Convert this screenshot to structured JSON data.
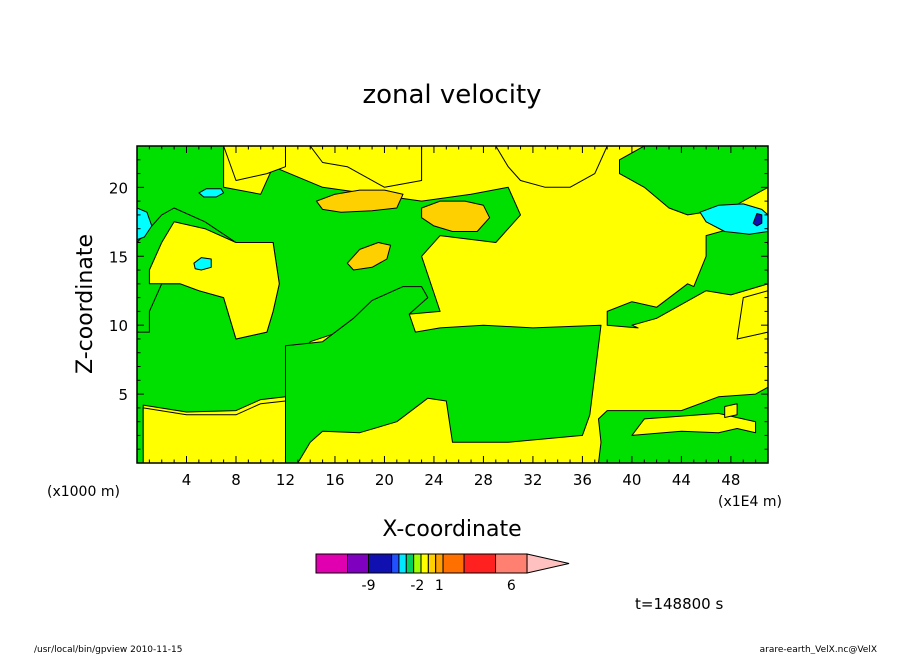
{
  "chart_data": {
    "type": "heatmap",
    "title": "zonal velocity",
    "xlabel": "X-coordinate",
    "ylabel": "Z-coordinate",
    "x_unit_left": "(x1000 m)",
    "x_unit_right": "(x1E4 m)",
    "xlim": [
      0,
      51
    ],
    "ylim": [
      0,
      23
    ],
    "xticks": [
      4,
      8,
      12,
      16,
      20,
      24,
      28,
      32,
      36,
      40,
      44,
      48
    ],
    "yticks": [
      5,
      10,
      15,
      20
    ],
    "time_label": "t=148800 s",
    "colorbar": {
      "labels": [
        {
          "text": "-9",
          "bin": 2
        },
        {
          "text": "-2",
          "bin": 6.5
        },
        {
          "text": "1",
          "bin": 9.5
        },
        {
          "text": "6",
          "bin": 12.5
        }
      ],
      "colors": [
        "#e000b0",
        "#8000c0",
        "#1010b0",
        "#2050ff",
        "#00e8ff",
        "#00d060",
        "#a0ff00",
        "#ffff00",
        "#ffd000",
        "#ffa000",
        "#ff7000",
        "#ff2020",
        "#ff8070"
      ],
      "bin_widths": [
        1.5,
        1,
        1.1,
        0.35,
        0.35,
        0.35,
        0.35,
        0.35,
        0.35,
        0.35,
        1,
        1.5,
        1.5
      ]
    },
    "regions": [
      {
        "level": "green",
        "color": "#00e000",
        "polygons": [
          [
            [
              0,
              0
            ],
            [
              0,
              23
            ],
            [
              7,
              23
            ],
            [
              7,
              20
            ],
            [
              10,
              19.5
            ],
            [
              11,
              21.5
            ],
            [
              15,
              20
            ],
            [
              19,
              19.5
            ],
            [
              23,
              19
            ],
            [
              27,
              19.5
            ],
            [
              30,
              20
            ],
            [
              31,
              18
            ],
            [
              29,
              16
            ],
            [
              24.5,
              16.5
            ],
            [
              23,
              15
            ],
            [
              24.5,
              11
            ],
            [
              22,
              10.8
            ],
            [
              18,
              10
            ],
            [
              14,
              8.8
            ],
            [
              12,
              4.8
            ],
            [
              10,
              4.6
            ],
            [
              8,
              3.8
            ],
            [
              4,
              3.7
            ],
            [
              0.5,
              4.2
            ],
            [
              0.5,
              1
            ],
            [
              1,
              0
            ]
          ],
          [
            [
              12,
              0
            ],
            [
              12,
              8.5
            ],
            [
              15,
              8.8
            ],
            [
              17.5,
              10.5
            ],
            [
              19,
              11.8
            ],
            [
              21.5,
              12.8
            ],
            [
              23,
              12.8
            ],
            [
              23.5,
              12
            ],
            [
              22,
              10.8
            ],
            [
              22.5,
              9.5
            ],
            [
              24.5,
              9.8
            ],
            [
              28,
              10
            ],
            [
              32,
              9.8
            ],
            [
              37.5,
              10
            ],
            [
              36.6,
              3.5
            ],
            [
              36,
              2
            ],
            [
              30,
              1.5
            ],
            [
              25.5,
              1.5
            ],
            [
              25,
              4.5
            ],
            [
              23.5,
              4.7
            ],
            [
              21,
              3
            ],
            [
              18,
              2.2
            ],
            [
              15,
              2.3
            ],
            [
              14,
              1.5
            ],
            [
              13,
              0
            ]
          ],
          [
            [
              0,
              9.5
            ],
            [
              0,
              16
            ],
            [
              2,
              18
            ],
            [
              3,
              18.5
            ],
            [
              5.5,
              17.5
            ],
            [
              8,
              16
            ],
            [
              11,
              16
            ],
            [
              11.5,
              13
            ],
            [
              11,
              11
            ],
            [
              10.5,
              9.5
            ],
            [
              8,
              9
            ],
            [
              7,
              12
            ],
            [
              5,
              12.5
            ],
            [
              3.5,
              13
            ],
            [
              2,
              13
            ],
            [
              1,
              11
            ],
            [
              1,
              9.5
            ]
          ],
          [
            [
              38,
              10
            ],
            [
              38,
              11
            ],
            [
              40,
              11.7
            ],
            [
              42,
              11.3
            ],
            [
              44.5,
              13
            ],
            [
              45,
              12.8
            ],
            [
              46,
              15
            ],
            [
              46,
              16.5
            ],
            [
              48,
              17
            ],
            [
              51,
              17
            ],
            [
              51,
              13
            ],
            [
              48,
              12.2
            ],
            [
              46,
              12.5
            ],
            [
              42,
              10.5
            ],
            [
              40,
              10
            ],
            [
              40.5,
              9.8
            ]
          ],
          [
            [
              37.3,
              3.2
            ],
            [
              38,
              3.8
            ],
            [
              44,
              3.8
            ],
            [
              47,
              4.8
            ],
            [
              50,
              5
            ],
            [
              51,
              5.5
            ],
            [
              51,
              0
            ],
            [
              37.3,
              0
            ],
            [
              37.5,
              1.5
            ]
          ],
          [
            [
              39,
              21
            ],
            [
              41,
              20
            ],
            [
              43,
              18.5
            ],
            [
              44.5,
              18
            ],
            [
              48,
              18.5
            ],
            [
              51,
              20
            ],
            [
              51,
              23
            ],
            [
              41,
              23
            ],
            [
              39,
              22
            ]
          ]
        ]
      },
      {
        "level": "yellow",
        "color": "#ffff00",
        "polygons": [
          [
            [
              7,
              23
            ],
            [
              12,
              23
            ],
            [
              12,
              21.5
            ],
            [
              10.5,
              21
            ],
            [
              8,
              20.5
            ]
          ],
          [
            [
              14,
              23
            ],
            [
              23,
              23
            ],
            [
              23,
              20.5
            ],
            [
              20,
              20
            ],
            [
              17,
              21.5
            ],
            [
              15,
              21.8
            ]
          ],
          [
            [
              29,
              23
            ],
            [
              38,
              23
            ],
            [
              37,
              21
            ],
            [
              35,
              20
            ],
            [
              33,
              20
            ],
            [
              31,
              20.5
            ],
            [
              30,
              21.5
            ]
          ],
          [
            [
              0.5,
              0
            ],
            [
              0.5,
              4
            ],
            [
              4,
              3.5
            ],
            [
              8,
              3.5
            ],
            [
              10,
              4.3
            ],
            [
              12,
              4.5
            ],
            [
              12,
              0
            ]
          ],
          [
            [
              1,
              13
            ],
            [
              2,
              13
            ],
            [
              3.5,
              13
            ],
            [
              5,
              12.5
            ],
            [
              7,
              12
            ],
            [
              8,
              9
            ],
            [
              10.5,
              9.5
            ],
            [
              11,
              11
            ],
            [
              11.5,
              13
            ],
            [
              11,
              16
            ],
            [
              8,
              16
            ],
            [
              5.5,
              17
            ],
            [
              3,
              17.5
            ],
            [
              2,
              16
            ],
            [
              1,
              14
            ]
          ],
          [
            [
              40,
              2
            ],
            [
              44,
              2.3
            ],
            [
              47,
              2.2
            ],
            [
              48.5,
              2.5
            ],
            [
              50,
              2.2
            ],
            [
              50,
              3
            ],
            [
              47,
              3.6
            ],
            [
              44,
              3.4
            ],
            [
              41,
              3.2
            ]
          ],
          [
            [
              48.5,
              9
            ],
            [
              51,
              9.5
            ],
            [
              51,
              12.5
            ],
            [
              49,
              12
            ]
          ],
          [
            [
              47.5,
              3.3
            ],
            [
              48.5,
              3.5
            ],
            [
              48.5,
              4.3
            ],
            [
              47.5,
              4.1
            ]
          ]
        ]
      },
      {
        "level": "orange",
        "color": "#ffd000",
        "polygons": [
          [
            [
              14.5,
              19
            ],
            [
              16,
              19.5
            ],
            [
              18,
              19.8
            ],
            [
              20,
              19.8
            ],
            [
              21.5,
              19.5
            ],
            [
              21,
              18.5
            ],
            [
              19,
              18.3
            ],
            [
              16.5,
              18.2
            ],
            [
              15,
              18.4
            ]
          ],
          [
            [
              23,
              18.5
            ],
            [
              24.5,
              19
            ],
            [
              26.5,
              19
            ],
            [
              28,
              18.7
            ],
            [
              28.5,
              17.8
            ],
            [
              27.5,
              16.8
            ],
            [
              25.5,
              16.8
            ],
            [
              24,
              17.2
            ],
            [
              23,
              17.8
            ]
          ],
          [
            [
              17,
              14.5
            ],
            [
              18,
              15.5
            ],
            [
              19.5,
              16
            ],
            [
              20.5,
              15.8
            ],
            [
              20.2,
              14.8
            ],
            [
              19,
              14.2
            ],
            [
              17.5,
              14
            ]
          ]
        ]
      },
      {
        "level": "cyan",
        "color": "#00ffff",
        "polygons": [
          [
            [
              0,
              16.2
            ],
            [
              0,
              18.5
            ],
            [
              0.8,
              18.2
            ],
            [
              1.2,
              17.2
            ],
            [
              0.6,
              16.4
            ]
          ],
          [
            [
              45.5,
              18.2
            ],
            [
              47,
              18.7
            ],
            [
              49,
              18.8
            ],
            [
              50.5,
              18.4
            ],
            [
              51,
              18
            ],
            [
              51,
              16.8
            ],
            [
              49.5,
              16.6
            ],
            [
              47.5,
              16.8
            ],
            [
              46,
              17.5
            ]
          ],
          [
            [
              5,
              19.6
            ],
            [
              5.6,
              19.9
            ],
            [
              6.8,
              19.9
            ],
            [
              7,
              19.6
            ],
            [
              6.4,
              19.3
            ],
            [
              5.4,
              19.3
            ]
          ],
          [
            [
              4.6,
              14.5
            ],
            [
              5.2,
              14.9
            ],
            [
              6,
              14.8
            ],
            [
              6,
              14.2
            ],
            [
              5.2,
              14
            ],
            [
              4.7,
              14.1
            ]
          ]
        ]
      },
      {
        "level": "blue",
        "color": "#1010b0",
        "polygons": [
          [
            [
              49.8,
              17.4
            ],
            [
              50.1,
              18.1
            ],
            [
              50.5,
              18
            ],
            [
              50.5,
              17.4
            ],
            [
              50.1,
              17.2
            ]
          ]
        ]
      }
    ]
  },
  "footer": {
    "left": "/usr/local/bin/gpview  2010-11-15",
    "right": "arare-earth_VelX.nc@VelX"
  }
}
